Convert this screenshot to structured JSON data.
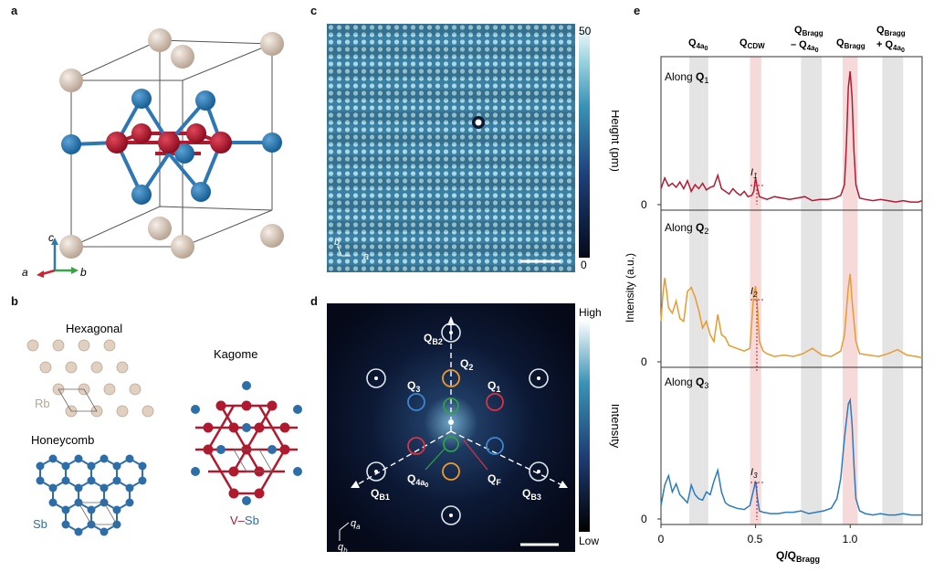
{
  "panels": {
    "a": {
      "label": "a",
      "axes": {
        "c": "c",
        "a": "a",
        "b": "b"
      }
    },
    "b": {
      "label": "b",
      "hexagonal": "Hexagonal",
      "rb": "Rb",
      "honeycomb": "Honeycomb",
      "sb": "Sb",
      "kagome": "Kagome",
      "v": "V",
      "dash": "–",
      "sb2": "Sb"
    },
    "c": {
      "label": "c",
      "colorbar_max": "50",
      "colorbar_min": "0",
      "colorbar_title": "Height (pm)",
      "axis_b": "b",
      "axis_a": "a"
    },
    "d": {
      "label": "d",
      "colorbar_max": "High",
      "colorbar_min": "Low",
      "colorbar_title": "Intensity",
      "spots": {
        "qb2": "Q",
        "qb2_sub": "B2",
        "q2": "Q",
        "q2_sub": "2",
        "q3": "Q",
        "q3_sub": "3",
        "q1": "Q",
        "q1_sub": "1",
        "q4a0": "Q",
        "q4a0_sub": "4a",
        "q4a0_subsub": "0",
        "qf": "Q",
        "qf_sub": "F",
        "qb1": "Q",
        "qb1_sub": "B1",
        "qb3": "Q",
        "qb3_sub": "B3"
      },
      "axis_qa": "q",
      "axis_qa_sub": "a",
      "axis_qb": "q",
      "axis_qb_sub": "b"
    },
    "e": {
      "label": "e",
      "col_labels": {
        "q4a0": "Q",
        "q4a0_sub": "4a",
        "q4a0_subsub": "0",
        "qcdw": "Q",
        "qcdw_sub": "CDW",
        "qbragg_minus_line1": "Q",
        "qbragg_minus_line1_sub": "Bragg",
        "qbragg_minus_line2": "– Q",
        "qbragg_minus_line2_sub": "4a",
        "qbragg_minus_line2_subsub": "0",
        "qbragg": "Q",
        "qbragg_sub": "Bragg",
        "qbragg_plus_line1": "Q",
        "qbragg_plus_line1_sub": "Bragg",
        "qbragg_plus_line2": "+ Q",
        "qbragg_plus_line2_sub": "4a",
        "qbragg_plus_line2_subsub": "0"
      },
      "rows": [
        {
          "title_pre": "Along ",
          "title_q": "Q",
          "title_sub": "1",
          "zero": "0",
          "i_label": "I",
          "i_sub": "1"
        },
        {
          "title_pre": "Along ",
          "title_q": "Q",
          "title_sub": "2",
          "zero": "0",
          "i_label": "I",
          "i_sub": "2"
        },
        {
          "title_pre": "Along ",
          "title_q": "Q",
          "title_sub": "3",
          "zero": "0",
          "i_label": "I",
          "i_sub": "3"
        }
      ],
      "ylabel": "Intensity (a.u.)",
      "xlabel_q": "Q/Q",
      "xlabel_sub": "Bragg",
      "xticks": [
        "0",
        "0.5",
        "1.0"
      ]
    }
  },
  "chart_data": {
    "type": "line",
    "title": "",
    "xlabel": "Q/QBragg",
    "ylabel": "Intensity (a.u.)",
    "xlim": [
      0,
      1.38
    ],
    "xticks": [
      0,
      0.5,
      1.0
    ],
    "shaded_bands": [
      {
        "name": "Q4a0",
        "x": [
          0.15,
          0.25
        ],
        "color": "#e4e4e4"
      },
      {
        "name": "QCDW",
        "x": [
          0.47,
          0.53
        ],
        "color": "#f6dada"
      },
      {
        "name": "QBragg - Q4a0",
        "x": [
          0.74,
          0.85
        ],
        "color": "#e4e4e4"
      },
      {
        "name": "QBragg",
        "x": [
          0.96,
          1.04
        ],
        "color": "#f6dada"
      },
      {
        "name": "QBragg + Q4a0",
        "x": [
          1.17,
          1.28
        ],
        "color": "#e4e4e4"
      }
    ],
    "series": [
      {
        "name": "Along Q1",
        "color": "#b31b34",
        "ylim": [
          0,
          1
        ],
        "x": [
          0.0,
          0.02,
          0.04,
          0.06,
          0.08,
          0.1,
          0.12,
          0.14,
          0.16,
          0.18,
          0.2,
          0.22,
          0.24,
          0.26,
          0.28,
          0.3,
          0.32,
          0.34,
          0.36,
          0.38,
          0.4,
          0.42,
          0.44,
          0.46,
          0.48,
          0.49,
          0.5,
          0.51,
          0.52,
          0.54,
          0.56,
          0.6,
          0.64,
          0.68,
          0.72,
          0.76,
          0.8,
          0.84,
          0.88,
          0.92,
          0.95,
          0.97,
          0.98,
          0.99,
          1.0,
          1.01,
          1.02,
          1.03,
          1.05,
          1.08,
          1.12,
          1.16,
          1.2,
          1.24,
          1.28,
          1.32,
          1.36,
          1.38
        ],
        "y": [
          0.12,
          0.2,
          0.14,
          0.16,
          0.13,
          0.17,
          0.12,
          0.18,
          0.1,
          0.15,
          0.12,
          0.16,
          0.11,
          0.13,
          0.14,
          0.22,
          0.12,
          0.1,
          0.08,
          0.12,
          0.09,
          0.07,
          0.1,
          0.06,
          0.07,
          0.1,
          0.2,
          0.12,
          0.06,
          0.05,
          0.04,
          0.06,
          0.05,
          0.04,
          0.05,
          0.06,
          0.03,
          0.04,
          0.04,
          0.05,
          0.07,
          0.15,
          0.45,
          0.88,
          1.0,
          0.8,
          0.4,
          0.15,
          0.05,
          0.04,
          0.03,
          0.04,
          0.03,
          0.02,
          0.03,
          0.02,
          0.02,
          0.03
        ]
      },
      {
        "name": "Along Q2",
        "color": "#e89b2f",
        "ylim": [
          0,
          1
        ],
        "x": [
          0.0,
          0.01,
          0.02,
          0.03,
          0.04,
          0.06,
          0.08,
          0.1,
          0.12,
          0.14,
          0.16,
          0.18,
          0.2,
          0.22,
          0.24,
          0.26,
          0.28,
          0.3,
          0.32,
          0.34,
          0.36,
          0.4,
          0.44,
          0.47,
          0.49,
          0.5,
          0.51,
          0.52,
          0.54,
          0.56,
          0.6,
          0.65,
          0.7,
          0.75,
          0.8,
          0.85,
          0.9,
          0.95,
          0.97,
          0.99,
          1.0,
          1.01,
          1.03,
          1.05,
          1.1,
          1.15,
          1.2,
          1.25,
          1.3,
          1.35,
          1.38
        ],
        "y": [
          0.3,
          0.5,
          0.62,
          0.52,
          0.4,
          0.36,
          0.45,
          0.32,
          0.3,
          0.52,
          0.55,
          0.48,
          0.38,
          0.25,
          0.3,
          0.2,
          0.15,
          0.35,
          0.2,
          0.18,
          0.12,
          0.1,
          0.08,
          0.1,
          0.5,
          0.56,
          0.4,
          0.15,
          0.08,
          0.06,
          0.04,
          0.05,
          0.04,
          0.06,
          0.1,
          0.05,
          0.04,
          0.08,
          0.2,
          0.55,
          0.65,
          0.45,
          0.15,
          0.06,
          0.05,
          0.04,
          0.06,
          0.09,
          0.05,
          0.04,
          0.03
        ]
      },
      {
        "name": "Along Q3",
        "color": "#2b7bbf",
        "ylim": [
          0,
          1
        ],
        "x": [
          0.0,
          0.02,
          0.04,
          0.06,
          0.08,
          0.1,
          0.12,
          0.14,
          0.16,
          0.18,
          0.2,
          0.22,
          0.24,
          0.26,
          0.28,
          0.3,
          0.32,
          0.34,
          0.36,
          0.4,
          0.44,
          0.47,
          0.49,
          0.5,
          0.51,
          0.52,
          0.54,
          0.58,
          0.62,
          0.66,
          0.7,
          0.74,
          0.78,
          0.82,
          0.86,
          0.9,
          0.93,
          0.95,
          0.97,
          0.99,
          1.0,
          1.01,
          1.02,
          1.03,
          1.05,
          1.08,
          1.12,
          1.16,
          1.2,
          1.24,
          1.28,
          1.32,
          1.36,
          1.38
        ],
        "y": [
          0.1,
          0.25,
          0.32,
          0.2,
          0.26,
          0.18,
          0.15,
          0.12,
          0.25,
          0.18,
          0.15,
          0.14,
          0.2,
          0.18,
          0.28,
          0.36,
          0.2,
          0.12,
          0.1,
          0.08,
          0.07,
          0.1,
          0.22,
          0.28,
          0.15,
          0.06,
          0.05,
          0.04,
          0.04,
          0.05,
          0.05,
          0.06,
          0.04,
          0.05,
          0.06,
          0.08,
          0.15,
          0.3,
          0.6,
          0.85,
          0.88,
          0.7,
          0.4,
          0.15,
          0.06,
          0.04,
          0.03,
          0.04,
          0.03,
          0.03,
          0.04,
          0.03,
          0.03,
          0.03
        ]
      }
    ]
  }
}
